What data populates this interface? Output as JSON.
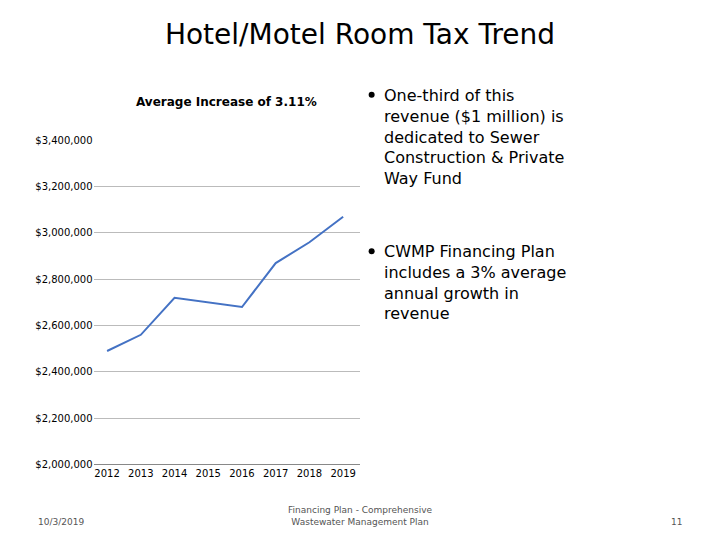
{
  "chart_data": {
    "type": "line",
    "title": "Hotel/Motel Room Tax Trend",
    "subtitle": "Average Increase of 3.11%",
    "x": [
      2012,
      2013,
      2014,
      2015,
      2016,
      2017,
      2018,
      2019
    ],
    "values": [
      2490000,
      2560000,
      2720000,
      2700000,
      2680000,
      2870000,
      2960000,
      3070000
    ],
    "color": "#4472C4",
    "xlim": [
      2011.6,
      2019.5
    ],
    "xticks": [
      2012,
      2013,
      2014,
      2015,
      2016,
      2017,
      2018,
      2019
    ],
    "ylim": [
      2000000,
      3400000
    ],
    "yticks": [
      {
        "value": 2000000,
        "label": "$2,000,000"
      },
      {
        "value": 2200000,
        "label": "$2,200,000"
      },
      {
        "value": 2400000,
        "label": "$2,400,000"
      },
      {
        "value": 2600000,
        "label": "$2,600,000"
      },
      {
        "value": 2800000,
        "label": "$2,800,000"
      },
      {
        "value": 3000000,
        "label": "$3,000,000"
      },
      {
        "value": 3200000,
        "label": "$3,200,000"
      },
      {
        "value": 3400000,
        "label": "$3,400,000"
      }
    ],
    "grid": true,
    "annotations": [
      "One-third of this\nrevenue ($1 million) is\ndedicated to Sewer\nConstruction & Private\nWay Fund",
      "CWMP Financing Plan\nincludes a 3% average\nannual growth in\nrevenue",
      "10/3/2019",
      "Financing Plan - Comprehensive\nWastewater Management Plan",
      "11"
    ]
  }
}
